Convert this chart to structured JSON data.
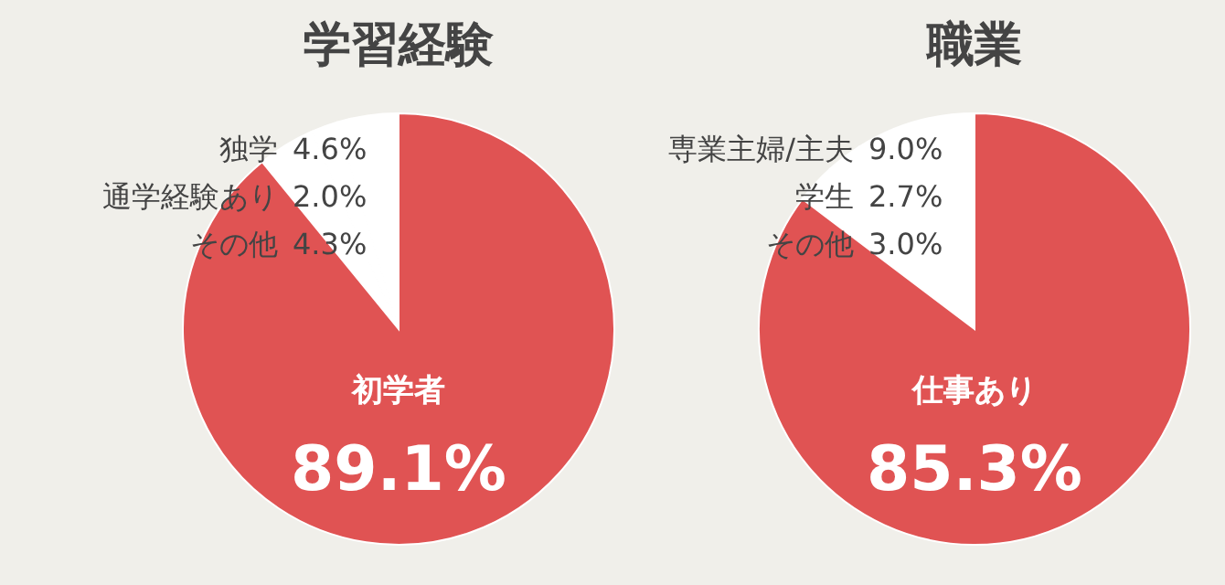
{
  "chart_data": [
    {
      "type": "pie",
      "title": "学習経験",
      "categories": [
        "独学",
        "通学経験あり",
        "その他",
        "初学者"
      ],
      "values": [
        4.6,
        2.0,
        4.3,
        89.1
      ],
      "colors": [
        "#ffffff",
        "#ffffff",
        "#ffffff",
        "#e05353"
      ],
      "value_labels": [
        "4.6%",
        "2.0%",
        "4.3%",
        "89.1%"
      ]
    },
    {
      "type": "pie",
      "title": "職業",
      "categories": [
        "専業主婦/主夫",
        "学生",
        "その他",
        "仕事あり"
      ],
      "values": [
        9.0,
        2.7,
        3.0,
        85.3
      ],
      "colors": [
        "#ffffff",
        "#ffffff",
        "#ffffff",
        "#e05353"
      ],
      "value_labels": [
        "9.0%",
        "2.7%",
        "3.0%",
        "85.3%"
      ]
    }
  ]
}
